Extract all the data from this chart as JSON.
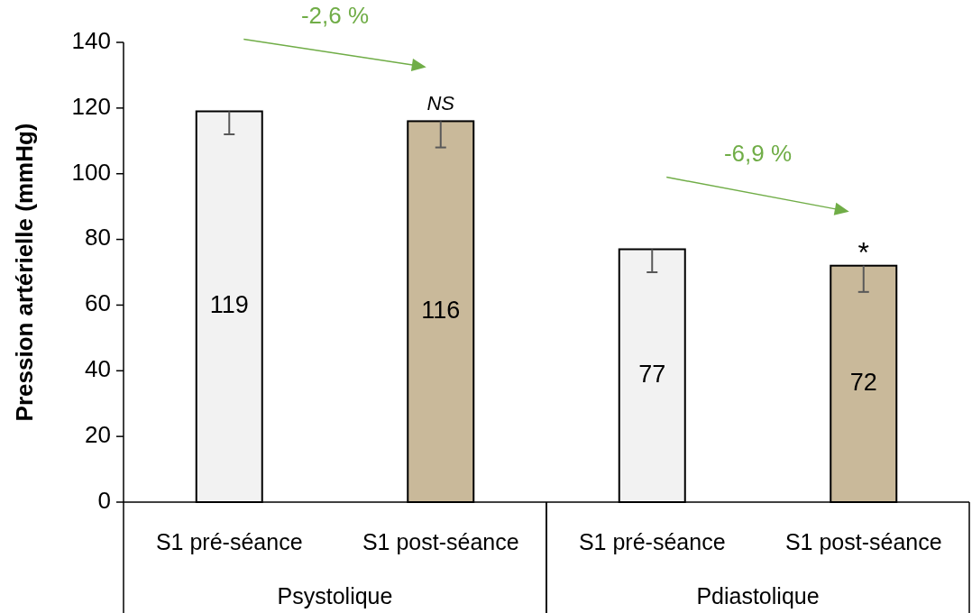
{
  "chart_data": {
    "type": "bar",
    "ylabel": "Pression artérielle (mmHg)",
    "categories": [
      "S1 pré-séance",
      "S1 post-séance",
      "S1 pré-séance",
      "S1 post-séance"
    ],
    "values": [
      119,
      116,
      77,
      72
    ],
    "colors": [
      "#f2f2f2",
      "#c9b99a",
      "#f2f2f2",
      "#c9b99a"
    ],
    "errors": [
      [
        112,
        119
      ],
      [
        108,
        116
      ],
      [
        70,
        77
      ],
      [
        64,
        72
      ]
    ],
    "data_labels": true,
    "ylim": [
      0,
      140
    ],
    "yticks": [
      0,
      20,
      40,
      60,
      80,
      100,
      120,
      140
    ],
    "annotations": [
      "-2,6 %",
      "NS",
      "-6,9 %",
      "*",
      "Psystolique",
      "Pdiastolique"
    ]
  }
}
